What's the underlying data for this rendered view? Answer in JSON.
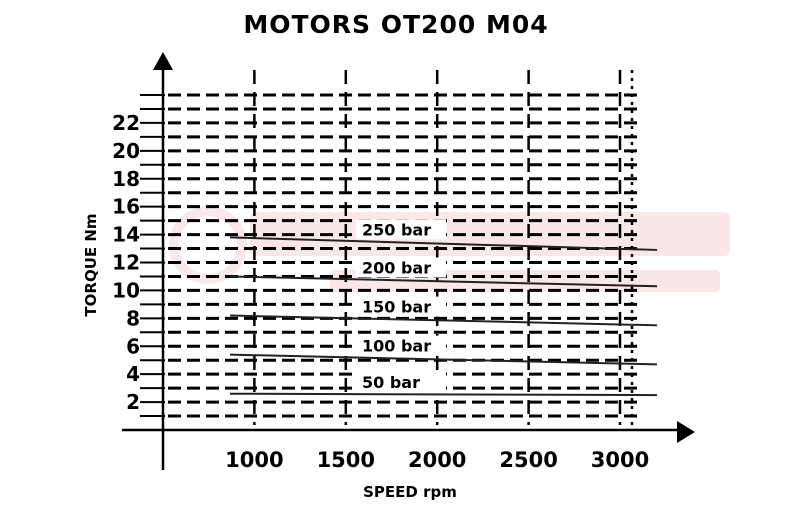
{
  "chart_data": {
    "type": "line",
    "title": "MOTORS OT200 M04",
    "xlabel": "SPEED rpm",
    "ylabel": "TORQUE Nm",
    "x_ticks": [
      "1000",
      "1500",
      "2000",
      "2500",
      "3000"
    ],
    "y_ticks": [
      "2",
      "4",
      "6",
      "8",
      "10",
      "12",
      "14",
      "16",
      "18",
      "20",
      "22"
    ],
    "xlim": [
      500,
      3200
    ],
    "ylim": [
      0,
      24
    ],
    "grid": true,
    "line_color": "#222222",
    "grid_color": "#000000",
    "series": [
      {
        "name": "250 bar",
        "x": [
          800,
          3200
        ],
        "y": [
          13.8,
          12.9
        ]
      },
      {
        "name": "200 bar",
        "x": [
          800,
          3200
        ],
        "y": [
          11.0,
          10.3
        ]
      },
      {
        "name": "150 bar",
        "x": [
          800,
          3200
        ],
        "y": [
          8.2,
          7.5
        ]
      },
      {
        "name": "100 bar",
        "x": [
          800,
          3200
        ],
        "y": [
          5.4,
          4.7
        ]
      },
      {
        "name": "50 bar",
        "x": [
          800,
          3200
        ],
        "y": [
          2.6,
          2.5
        ]
      }
    ]
  }
}
